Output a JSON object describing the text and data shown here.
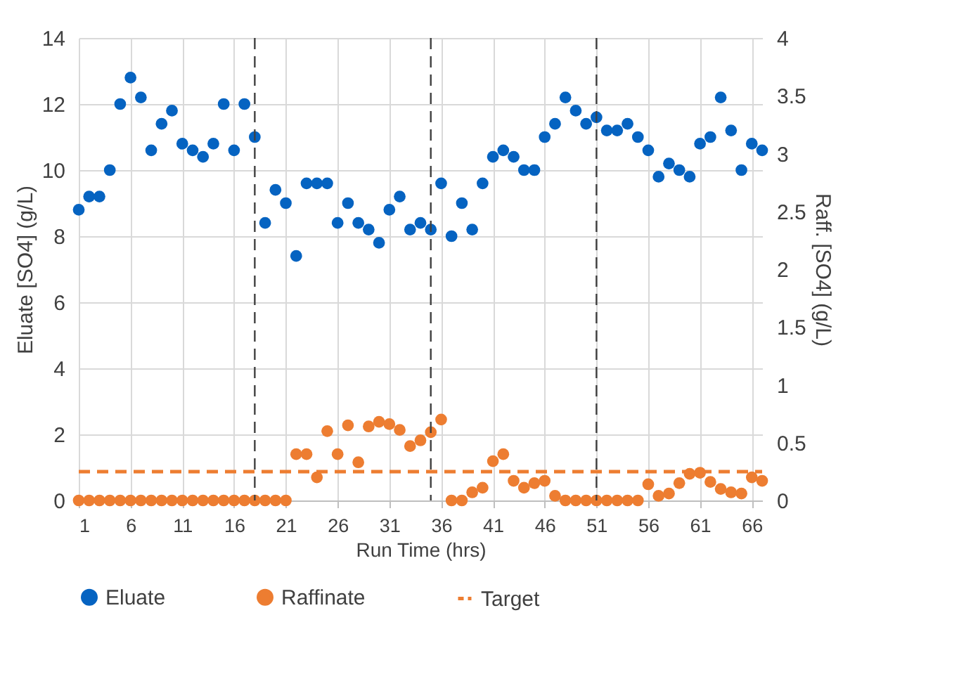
{
  "chart_data": {
    "type": "scatter",
    "xlabel": "Run Time (hrs)",
    "ylabel": "Eluate [SO4] (g/L)",
    "y2label": "Raff. [SO4] (g/L)",
    "x": [
      1,
      2,
      3,
      4,
      5,
      6,
      7,
      8,
      9,
      10,
      11,
      12,
      13,
      14,
      15,
      16,
      17,
      18,
      19,
      20,
      21,
      22,
      23,
      24,
      25,
      26,
      27,
      28,
      29,
      30,
      31,
      32,
      33,
      34,
      35,
      36,
      37,
      38,
      39,
      40,
      41,
      42,
      43,
      44,
      45,
      46,
      47,
      48,
      49,
      50,
      51,
      52,
      53,
      54,
      55,
      56,
      57,
      58,
      59,
      60,
      61,
      62,
      63,
      64,
      65,
      66,
      67
    ],
    "series": [
      {
        "name": "Eluate",
        "color": "#0563c1",
        "values": [
          8.8,
          9.2,
          9.2,
          10.0,
          12.0,
          12.8,
          12.2,
          10.6,
          11.4,
          11.8,
          10.8,
          10.6,
          10.4,
          10.8,
          12.0,
          10.6,
          12.0,
          11.0,
          8.4,
          9.4,
          9.0,
          7.4,
          9.6,
          9.6,
          9.6,
          8.4,
          9.0,
          8.4,
          8.2,
          7.8,
          8.8,
          9.2,
          8.2,
          8.4,
          8.2,
          9.6,
          8.0,
          9.0,
          8.2,
          9.6,
          10.4,
          10.6,
          10.4,
          10.0,
          10.0,
          11.0,
          11.4,
          12.2,
          11.8,
          11.4,
          11.6,
          11.2,
          11.2,
          11.4,
          11.0,
          10.6,
          9.8,
          10.2,
          10.0,
          9.8,
          10.8,
          11.0,
          12.2,
          11.2,
          10.0,
          10.8,
          10.6
        ]
      },
      {
        "name": "Raffinate",
        "color": "#ed7d31",
        "axis": "y2",
        "values": [
          0,
          0,
          0,
          0,
          0,
          0,
          0,
          0,
          0,
          0,
          0,
          0,
          0,
          0,
          0,
          0,
          0,
          0,
          0,
          0,
          0,
          0.4,
          0.4,
          0.2,
          0.6,
          0.4,
          0.65,
          0.33,
          0.64,
          0.68,
          0.66,
          0.61,
          0.47,
          0.52,
          0.59,
          0.7,
          0,
          0,
          0.07,
          0.11,
          0.34,
          0.4,
          0.17,
          0.11,
          0.15,
          0.17,
          0.04,
          0,
          0,
          0,
          0,
          0,
          0,
          0,
          0,
          0.14,
          0.04,
          0.06,
          0.15,
          0.23,
          0.24,
          0.16,
          0.1,
          0.07,
          0.06,
          0.2,
          0.17
        ]
      },
      {
        "name": "Target",
        "color": "#ed7d31",
        "type": "line",
        "line_style": "dashed",
        "marker": "none",
        "axis": "y2",
        "x": [
          1,
          67
        ],
        "values": [
          0.25,
          0.25
        ]
      }
    ],
    "xlim": [
      1,
      67
    ],
    "xticks": [
      1,
      6,
      11,
      16,
      21,
      26,
      31,
      36,
      41,
      46,
      51,
      56,
      61,
      66
    ],
    "ylim": [
      0,
      14
    ],
    "yticks": [
      0,
      2,
      4,
      6,
      8,
      10,
      12,
      14
    ],
    "y2lim": [
      0,
      4
    ],
    "y2ticks": [
      0,
      0.5,
      1,
      1.5,
      2,
      2.5,
      3,
      3.5,
      4
    ],
    "ref_lines": [
      {
        "axis": "x",
        "value": 18,
        "color": "#404040",
        "line_style": "dashed"
      },
      {
        "axis": "x",
        "value": 35,
        "color": "#404040",
        "line_style": "dashed"
      },
      {
        "axis": "x",
        "value": 51,
        "color": "#404040",
        "line_style": "dashed"
      }
    ],
    "grid": true,
    "legend": "bottom",
    "marker": "circle"
  }
}
